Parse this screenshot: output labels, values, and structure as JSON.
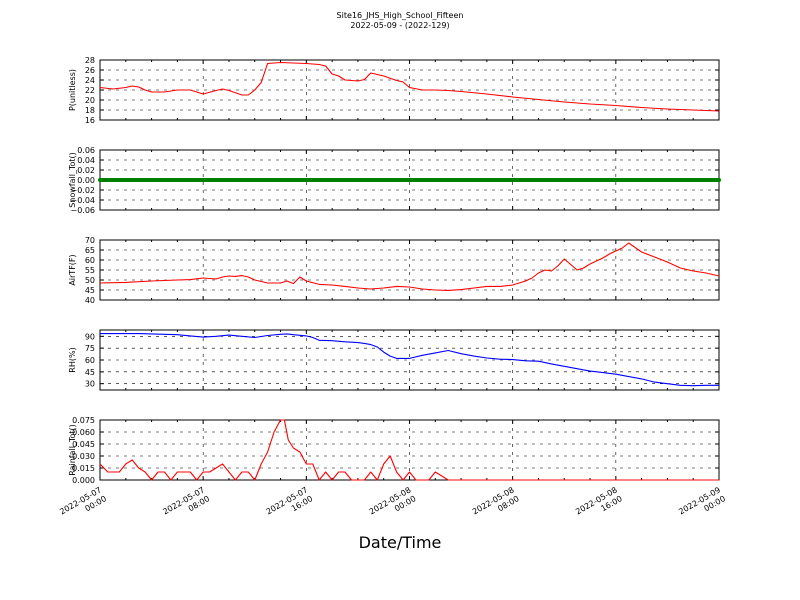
{
  "figure": {
    "title": "Site16_JHS_High_School_Fifteen",
    "subtitle": "2022-05-09 - (2022-129)",
    "xlabel": "Date/Time",
    "x_ticks": [
      "2022-05-07 00:00",
      "2022-05-07 08:00",
      "2022-05-07 16:00",
      "2022-05-08 00:00",
      "2022-05-08 08:00",
      "2022-05-08 16:00",
      "2022-05-09 00:00"
    ]
  },
  "chart_data": [
    {
      "type": "line",
      "ylabel": "P(unitless)",
      "ylim": [
        16,
        28
      ],
      "yticks": [
        "16",
        "18",
        "20",
        "22",
        "24",
        "26",
        "28"
      ],
      "grid": true,
      "series": [
        {
          "color": "#ff0000",
          "x": [
            0,
            1,
            2,
            2.5,
            3,
            3.5,
            4,
            5,
            6,
            7,
            8,
            9,
            9.5,
            10,
            11,
            11.5,
            12,
            12.5,
            13,
            14,
            15,
            16,
            17,
            17.5,
            18,
            18.5,
            19,
            20,
            20.5,
            21,
            22,
            23,
            23.5,
            24,
            25,
            26,
            27,
            28,
            30,
            32,
            34,
            36,
            38,
            40,
            42,
            44,
            46,
            48
          ],
          "y": [
            22.5,
            22.2,
            22.5,
            22.8,
            22.6,
            22,
            21.6,
            21.6,
            22,
            22,
            21.2,
            21.9,
            22.2,
            21.9,
            21,
            21,
            22,
            23.5,
            27.3,
            27.5,
            27.4,
            27.3,
            27.1,
            26.8,
            25.2,
            24.8,
            24,
            23.8,
            24.1,
            25.4,
            24.8,
            23.9,
            23.6,
            22.5,
            22,
            22,
            21.9,
            21.7,
            21.2,
            20.6,
            20.1,
            19.6,
            19.2,
            18.9,
            18.5,
            18.2,
            18,
            17.8
          ]
        }
      ]
    },
    {
      "type": "line",
      "ylabel": "Snowfall_Tot()",
      "ylim": [
        -0.06,
        0.06
      ],
      "yticks": [
        "−0.06",
        "−0.04",
        "−0.02",
        "0.00",
        "0.02",
        "0.04",
        "0.06"
      ],
      "grid": true,
      "series": [
        {
          "color": "#008000",
          "x": [
            0,
            48
          ],
          "y": [
            0,
            0
          ]
        }
      ]
    },
    {
      "type": "line",
      "ylabel": "AirTF(F)",
      "ylim": [
        40,
        70
      ],
      "yticks": [
        "40",
        "45",
        "50",
        "55",
        "60",
        "65",
        "70"
      ],
      "grid": true,
      "series": [
        {
          "color": "#ff0000",
          "x": [
            0,
            2,
            4,
            6,
            7,
            8,
            9,
            9.5,
            10,
            10.5,
            11,
            11.5,
            12,
            13,
            14,
            14.5,
            15,
            15.5,
            16,
            17,
            18,
            19,
            20,
            21,
            22,
            23,
            24,
            25,
            26,
            27,
            28,
            29,
            30,
            31,
            32,
            33,
            33.5,
            34,
            34.5,
            35,
            35.5,
            36,
            37,
            37.5,
            38,
            38.5,
            39,
            39.5,
            40,
            40.5,
            41,
            42,
            43,
            44,
            45,
            46,
            47,
            48
          ],
          "y": [
            48.5,
            48.8,
            49.5,
            50,
            50.2,
            51,
            50.5,
            51.5,
            52,
            51.8,
            52.2,
            51.5,
            50,
            48.5,
            48.5,
            49.5,
            48.2,
            51.5,
            49.5,
            47.8,
            47.5,
            46.8,
            46,
            45.5,
            46,
            46.8,
            46.5,
            45.5,
            45,
            44.8,
            45.2,
            46,
            46.8,
            46.8,
            47.5,
            49.5,
            51,
            53.5,
            55,
            54.5,
            57,
            60.5,
            55,
            56,
            58,
            59.5,
            61,
            63,
            64.5,
            66,
            68.5,
            64,
            61.5,
            59,
            56,
            54.5,
            53.5,
            52
          ]
        }
      ]
    },
    {
      "type": "line",
      "ylabel": "RH(%)",
      "ylim": [
        22,
        98
      ],
      "yticks": [
        "30",
        "45",
        "60",
        "75",
        "90"
      ],
      "grid": true,
      "series": [
        {
          "color": "#0000ff",
          "x": [
            0,
            3,
            6,
            7,
            8,
            9,
            10,
            11,
            12,
            13,
            14,
            14.5,
            15,
            16,
            16.5,
            17,
            18,
            19,
            20,
            20.5,
            21,
            21.5,
            22,
            22.5,
            23,
            24,
            25,
            26,
            27,
            28,
            29,
            30,
            31,
            32,
            33,
            34,
            35,
            36,
            37,
            38,
            39,
            40,
            41,
            42,
            43,
            44,
            45,
            46,
            47,
            48
          ],
          "y": [
            93.5,
            93.5,
            92,
            90.5,
            89,
            90,
            91.5,
            90,
            88.5,
            91,
            92.5,
            93,
            92,
            90.5,
            88.5,
            85,
            84.5,
            83,
            82,
            81,
            79.5,
            76.5,
            70,
            65,
            62,
            62,
            66,
            69,
            72,
            68,
            65,
            62.5,
            61,
            60.5,
            59,
            58.5,
            55,
            52,
            49,
            46,
            44,
            42,
            39,
            36,
            32,
            30,
            28,
            27.5,
            28,
            28
          ]
        }
      ]
    },
    {
      "type": "line",
      "ylabel": "Rainfall_Tot()",
      "ylim": [
        0,
        0.075
      ],
      "yticks": [
        "0.000",
        "0.015",
        "0.030",
        "0.045",
        "0.060",
        "0.075"
      ],
      "grid": true,
      "series": [
        {
          "color": "#ff0000",
          "x": [
            0,
            0.3,
            0.6,
            1,
            1.5,
            2,
            2.5,
            3,
            3.5,
            4,
            4.5,
            5,
            5.5,
            6,
            6.5,
            7,
            7.5,
            8,
            8.5,
            9,
            9.5,
            10,
            10.5,
            11,
            11.5,
            12,
            12.5,
            13,
            13.5,
            14,
            14.3,
            14.6,
            15,
            15.5,
            16,
            16.5,
            17,
            17.5,
            18,
            18.5,
            19,
            19.5,
            20,
            20.5,
            21,
            21.5,
            22,
            22.5,
            23,
            23.5,
            24,
            24.5,
            25,
            25.5,
            26,
            27,
            28,
            30,
            35,
            40,
            48
          ],
          "y": [
            0.02,
            0.015,
            0.01,
            0.01,
            0.01,
            0.02,
            0.025,
            0.015,
            0.01,
            0,
            0.01,
            0.01,
            0,
            0.01,
            0.01,
            0.01,
            0,
            0.01,
            0.01,
            0.015,
            0.02,
            0.01,
            0,
            0.01,
            0.01,
            0,
            0.02,
            0.035,
            0.06,
            0.075,
            0.075,
            0.05,
            0.04,
            0.035,
            0.02,
            0.02,
            0,
            0.01,
            0,
            0.01,
            0.01,
            0,
            0,
            0,
            0.01,
            0,
            0.02,
            0.03,
            0.01,
            0,
            0.01,
            0,
            0,
            0,
            0.01,
            0,
            0,
            0,
            0,
            0,
            0
          ]
        }
      ]
    }
  ]
}
